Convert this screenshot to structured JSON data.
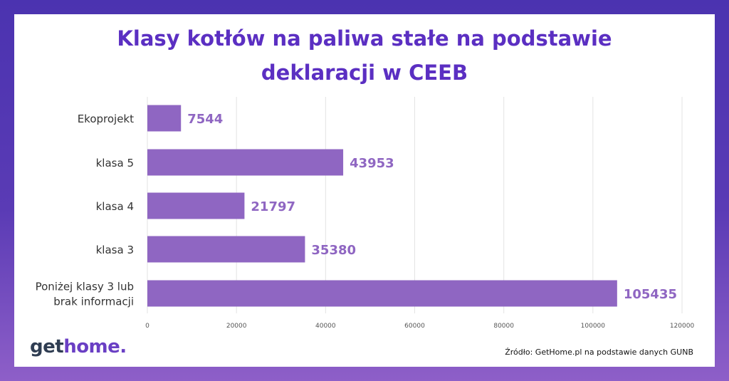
{
  "chart_data": {
    "type": "bar",
    "orientation": "horizontal",
    "title_lines": [
      "Klasy kotłów na paliwa stałe na podstawie",
      "deklaracji w CEEB"
    ],
    "categories": [
      [
        "Ekoprojekt"
      ],
      [
        "klasa 5"
      ],
      [
        "klasa 4"
      ],
      [
        "klasa 3"
      ],
      [
        "Poniżej klasy 3 lub",
        "brak informacji"
      ]
    ],
    "values": [
      7544,
      43953,
      21797,
      35380,
      105435
    ],
    "value_labels": [
      "7544",
      "43953",
      "21797",
      "35380",
      "105435"
    ],
    "x_ticks": [
      0,
      20000,
      40000,
      60000,
      80000,
      100000,
      120000
    ],
    "x_tick_labels": [
      "0",
      "20000",
      "40000",
      "60000",
      "80000",
      "100000",
      "120000"
    ],
    "xlim": [
      0,
      120000
    ],
    "grid": true,
    "bar_color": "#8f66c2",
    "label_color": "#8f66c2"
  },
  "logo": {
    "part1": "get",
    "part2": "home",
    "part3": "."
  },
  "source": "Źródło: GetHome.pl na podstawie danych GUNB"
}
